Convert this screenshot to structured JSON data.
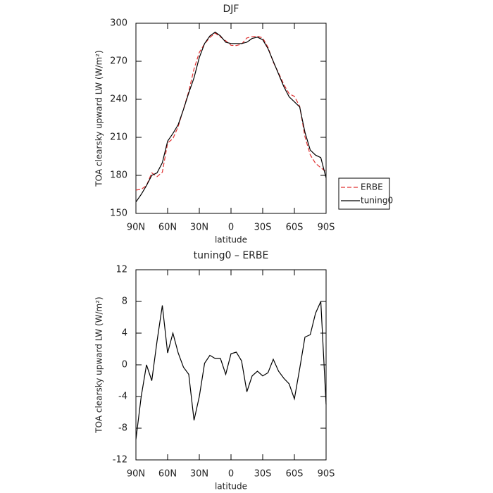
{
  "chart_data": [
    {
      "type": "line",
      "title": "DJF",
      "xlabel": "latitude",
      "ylabel": "TOA clearsky upward LW (W/m²)",
      "x": [
        90,
        85,
        80,
        75,
        70,
        65,
        60,
        55,
        50,
        45,
        40,
        35,
        30,
        25,
        20,
        15,
        10,
        5,
        0,
        -5,
        -10,
        -15,
        -20,
        -25,
        -30,
        -35,
        -40,
        -45,
        -50,
        -55,
        -60,
        -65,
        -70,
        -75,
        -80,
        -85,
        -90
      ],
      "xlim": [
        90,
        -90
      ],
      "xticks": [
        {
          "value": 90,
          "label": "90N"
        },
        {
          "value": 60,
          "label": "60N"
        },
        {
          "value": 30,
          "label": "30N"
        },
        0,
        {
          "value": -30,
          "label": "30S"
        },
        {
          "value": -60,
          "label": "60S"
        },
        {
          "value": -90,
          "label": "90S"
        }
      ],
      "ylim": [
        150,
        300
      ],
      "yticks": [
        150,
        180,
        210,
        240,
        270,
        300
      ],
      "legend": "right",
      "series": [
        {
          "name": "ERBE",
          "color": "#e03030",
          "linestyle": "dashed",
          "values": [
            168.4,
            169,
            172,
            182,
            179,
            182.5,
            205.5,
            209,
            218.5,
            232.3,
            246.2,
            264,
            277,
            283.8,
            288.8,
            292.2,
            289.2,
            286.2,
            282.6,
            282.4,
            283.5,
            288.4,
            289.4,
            289.8,
            288.4,
            281,
            269.3,
            260.8,
            251.7,
            244.4,
            242.3,
            234.5,
            210.5,
            196.2,
            189.5,
            186,
            183
          ]
        },
        {
          "name": "tuning0",
          "color": "#000000",
          "linestyle": "solid",
          "values": [
            159,
            165,
            172,
            180,
            182,
            190,
            207,
            213,
            220,
            232,
            245,
            257,
            273,
            284,
            290,
            293,
            290,
            285,
            284,
            284,
            284,
            285,
            288,
            289,
            287,
            280,
            270,
            260,
            250,
            242,
            238,
            234,
            214,
            200,
            196,
            194,
            178
          ]
        }
      ]
    },
    {
      "type": "line",
      "title": "tuning0 – ERBE",
      "xlabel": "latitude",
      "ylabel": "TOA clearsky upward LW (W/m²)",
      "x": [
        90,
        85,
        80,
        75,
        70,
        65,
        60,
        55,
        50,
        45,
        40,
        35,
        30,
        25,
        20,
        15,
        10,
        5,
        0,
        -5,
        -10,
        -15,
        -20,
        -25,
        -30,
        -35,
        -40,
        -45,
        -50,
        -55,
        -60,
        -65,
        -70,
        -75,
        -80,
        -85,
        -90
      ],
      "xlim": [
        90,
        -90
      ],
      "xticks": [
        {
          "value": 90,
          "label": "90N"
        },
        {
          "value": 60,
          "label": "60N"
        },
        {
          "value": 30,
          "label": "30N"
        },
        0,
        {
          "value": -30,
          "label": "30S"
        },
        {
          "value": -60,
          "label": "60S"
        },
        {
          "value": -90,
          "label": "90S"
        }
      ],
      "ylim": [
        -12,
        12
      ],
      "yticks": [
        -12,
        -8,
        -4,
        0,
        4,
        8,
        12
      ],
      "color": "#000000",
      "values": [
        -9.4,
        -4,
        0,
        -2,
        3,
        7.5,
        1.5,
        4,
        1.5,
        -0.3,
        -1.2,
        -7,
        -4,
        0.2,
        1.2,
        0.8,
        0.8,
        -1.2,
        1.4,
        1.6,
        0.5,
        -3.4,
        -1.4,
        -0.8,
        -1.4,
        -1,
        0.7,
        -0.8,
        -1.7,
        -2.4,
        -4.3,
        -0.5,
        3.5,
        3.8,
        6.5,
        8,
        -5
      ]
    }
  ]
}
